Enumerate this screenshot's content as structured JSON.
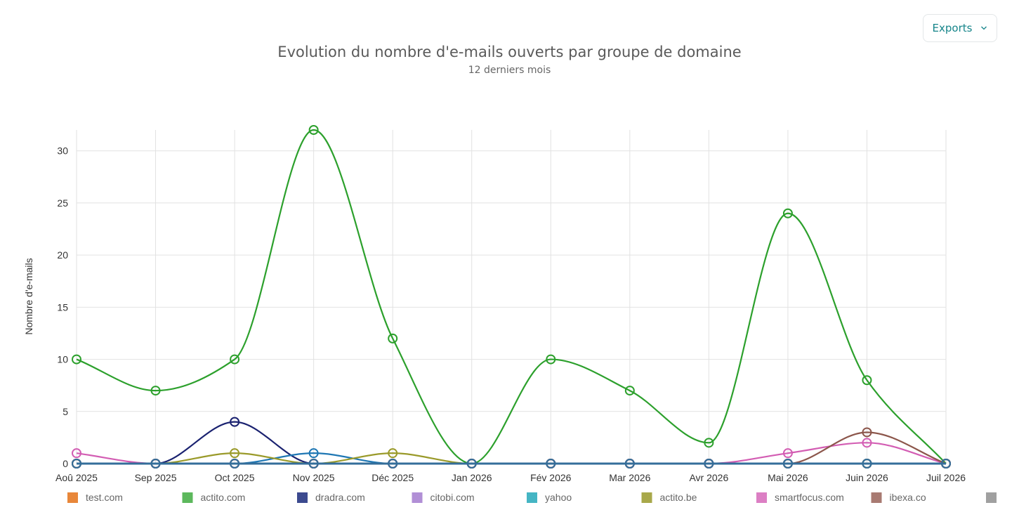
{
  "exports": {
    "label": "Exports"
  },
  "chart_data": {
    "type": "line",
    "title": "Evolution du nombre d'e-mails ouverts par groupe de domaine",
    "subtitle": "12 derniers mois",
    "ylabel": "Nombre d'e-mails",
    "xlabel": "",
    "ylim": [
      0,
      32
    ],
    "yticks": [
      0,
      5,
      10,
      15,
      20,
      25,
      30
    ],
    "categories": [
      "Aoû 2025",
      "Sep 2025",
      "Oct 2025",
      "Nov 2025",
      "Déc 2025",
      "Jan 2026",
      "Fév 2026",
      "Mar 2026",
      "Avr 2026",
      "Mai 2026",
      "Juin 2026",
      "Juil 2026"
    ],
    "grid": true,
    "legend_position": "bottom",
    "series": [
      {
        "name": "test.com",
        "color": "#e8873a",
        "values": [
          0,
          0,
          0,
          0,
          0,
          0,
          0,
          0,
          0,
          0,
          0,
          0
        ]
      },
      {
        "name": "actito.com",
        "color": "#2ca02c",
        "legend_color": "#5cb85c",
        "values": [
          10,
          7,
          10,
          32,
          12,
          0,
          10,
          7,
          2,
          24,
          8,
          0
        ]
      },
      {
        "name": "dradra.com",
        "color": "#1a2270",
        "legend_color": "#3c4a8f",
        "values": [
          0,
          0,
          4,
          0,
          0,
          0,
          0,
          0,
          0,
          0,
          0,
          0
        ]
      },
      {
        "name": "citobi.com",
        "color": "#9467bd",
        "legend_color": "#b18fd6",
        "values": [
          0,
          0,
          0,
          0,
          0,
          0,
          0,
          0,
          0,
          0,
          0,
          0
        ]
      },
      {
        "name": "yahoo",
        "color": "#1f77b4",
        "legend_color": "#45b5c4",
        "values": [
          0,
          0,
          0,
          1,
          0,
          0,
          0,
          0,
          0,
          0,
          0,
          0
        ]
      },
      {
        "name": "actito.be",
        "color": "#9a9a2a",
        "legend_color": "#a8a84a",
        "values": [
          0,
          0,
          1,
          0,
          1,
          0,
          0,
          0,
          0,
          0,
          0,
          0
        ]
      },
      {
        "name": "smartfocus.com",
        "color": "#d35db3",
        "legend_color": "#dc7fc4",
        "values": [
          1,
          0,
          0,
          0,
          0,
          0,
          0,
          0,
          0,
          1,
          2,
          0
        ]
      },
      {
        "name": "ibexa.co",
        "color": "#8c564b",
        "legend_color": "#a87a72",
        "values": [
          0,
          0,
          0,
          0,
          0,
          0,
          0,
          0,
          0,
          0,
          3,
          0
        ]
      },
      {
        "name": "",
        "color": "#346e9a",
        "legend_color": "#a0a0a0",
        "values": [
          0,
          0,
          0,
          0,
          0,
          0,
          0,
          0,
          0,
          0,
          0,
          0
        ]
      }
    ]
  }
}
